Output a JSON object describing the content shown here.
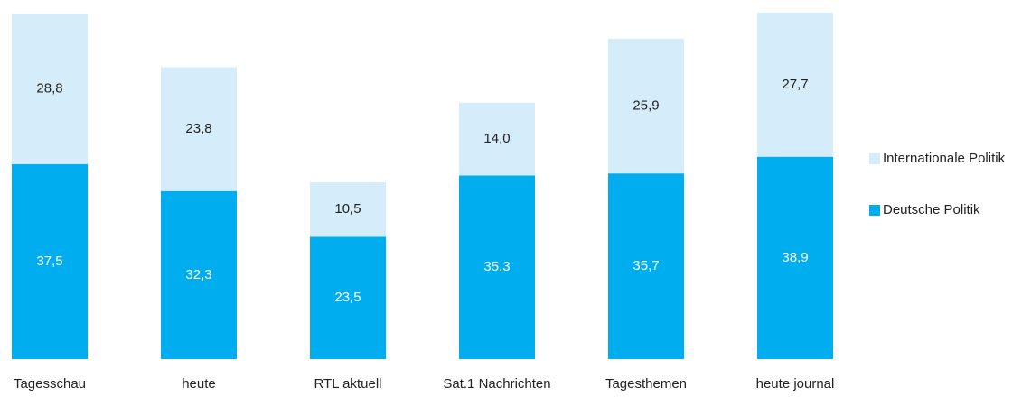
{
  "chart_data": {
    "type": "stacked_bar",
    "categories": [
      "Tagesschau",
      "heute",
      "RTL aktuell",
      "Sat.1 Nachrichten",
      "Tagesthemen",
      "heute journal"
    ],
    "series": [
      {
        "name": "Deutsche Politik",
        "color": "#00aeef",
        "label_color": "#ffffff",
        "values": [
          37.5,
          32.3,
          23.5,
          35.3,
          35.7,
          38.9
        ],
        "value_labels": [
          "37,5",
          "32,3",
          "23,5",
          "35,3",
          "35,7",
          "38,9"
        ]
      },
      {
        "name": "Internationale Politik",
        "color": "#d5edfa",
        "label_color": "#222222",
        "values": [
          28.8,
          23.8,
          10.5,
          14.0,
          25.9,
          27.7
        ],
        "value_labels": [
          "28,8",
          "23,8",
          "10,5",
          "14,0",
          "25,9",
          "27,7"
        ]
      }
    ],
    "legend": "right"
  }
}
